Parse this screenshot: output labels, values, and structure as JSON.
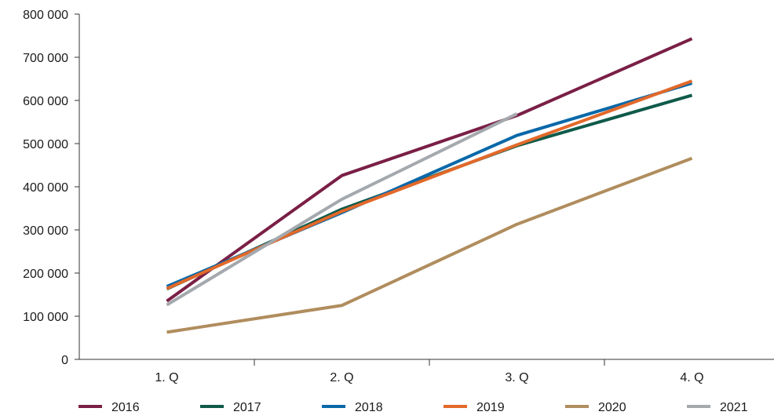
{
  "chart_data": {
    "type": "line",
    "categories": [
      "1. Q",
      "2. Q",
      "3. Q",
      "4. Q"
    ],
    "y_tick_labels": [
      "0",
      "100 000",
      "200 000",
      "300 000",
      "400 000",
      "500 000",
      "600 000",
      "700 000",
      "800 000"
    ],
    "y_ticks": [
      0,
      100000,
      200000,
      300000,
      400000,
      500000,
      600000,
      700000,
      800000
    ],
    "ylim": [
      0,
      800000
    ],
    "grid": false,
    "legend_position": "bottom",
    "series": [
      {
        "name": "2016",
        "color": "#7a1f46",
        "values": [
          135000,
          426000,
          565000,
          743000
        ]
      },
      {
        "name": "2017",
        "color": "#0f5a4a",
        "values": [
          163000,
          348000,
          495000,
          612000
        ]
      },
      {
        "name": "2018",
        "color": "#0a68a8",
        "values": [
          169000,
          340000,
          519000,
          640000
        ]
      },
      {
        "name": "2019",
        "color": "#e2692a",
        "values": [
          164000,
          343000,
          497000,
          645000
        ]
      },
      {
        "name": "2020",
        "color": "#b08d5e",
        "values": [
          63000,
          125000,
          313000,
          466000
        ]
      },
      {
        "name": "2021",
        "color": "#a4a9ae",
        "values": [
          126000,
          371000,
          569000,
          null
        ]
      }
    ]
  }
}
